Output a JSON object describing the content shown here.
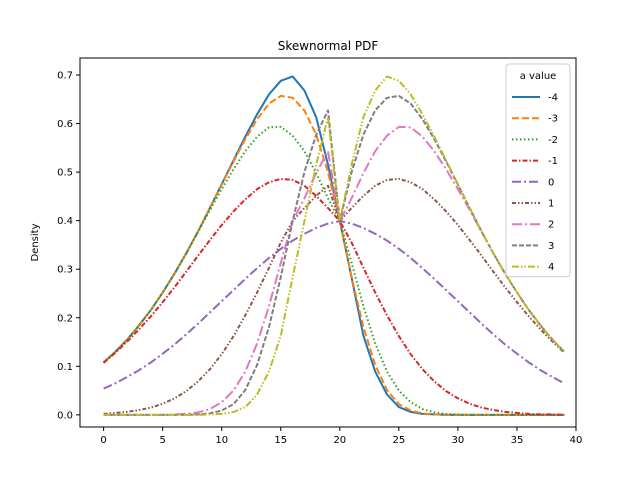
{
  "chart_data": {
    "type": "line",
    "title": "Skewnormal PDF",
    "xlabel": "",
    "ylabel": "Density",
    "xlim": [
      -2,
      40
    ],
    "ylim": [
      -0.025,
      0.735
    ],
    "xticks": [
      0,
      5,
      10,
      15,
      20,
      25,
      30,
      35,
      40
    ],
    "yticks": [
      0.0,
      0.1,
      0.2,
      0.3,
      0.4,
      0.5,
      0.6,
      0.7
    ],
    "grid": false,
    "legend": {
      "title": "a value",
      "placement": "top-right"
    },
    "x": [
      0,
      1,
      2,
      3,
      4,
      5,
      6,
      7,
      8,
      9,
      10,
      11,
      12,
      13,
      14,
      15,
      16,
      17,
      18,
      19,
      20,
      21,
      22,
      23,
      24,
      25,
      26,
      27,
      28,
      29,
      30,
      31,
      32,
      33,
      34,
      35,
      36,
      37,
      38,
      39
    ],
    "series": [
      {
        "name": "-4",
        "color": "#1f77b4",
        "dash": "solid",
        "values": [
          0.108,
          0.13,
          0.155,
          0.184,
          0.216,
          0.252,
          0.291,
          0.333,
          0.378,
          0.426,
          0.475,
          0.524,
          0.573,
          0.619,
          0.66,
          0.688,
          0.697,
          0.668,
          0.613,
          0.515,
          0.399,
          0.283,
          0.163,
          0.089,
          0.042,
          0.016,
          0.006,
          0.002,
          0.001,
          0.0,
          0.0,
          0.0,
          0.0,
          0.0,
          0.0,
          0.0,
          0.0,
          0.0,
          0.0,
          0.0
        ]
      },
      {
        "name": "-3",
        "color": "#ff7f0e",
        "dash": "dashed",
        "values": [
          0.108,
          0.13,
          0.155,
          0.184,
          0.216,
          0.252,
          0.291,
          0.333,
          0.378,
          0.426,
          0.474,
          0.522,
          0.568,
          0.609,
          0.641,
          0.657,
          0.653,
          0.627,
          0.577,
          0.5,
          0.399,
          0.284,
          0.181,
          0.103,
          0.051,
          0.022,
          0.009,
          0.003,
          0.001,
          0.0,
          0.0,
          0.0,
          0.0,
          0.0,
          0.0,
          0.0,
          0.0,
          0.0,
          0.0,
          0.0
        ]
      },
      {
        "name": "-2",
        "color": "#2ca02c",
        "dash": "dotted",
        "values": [
          0.108,
          0.13,
          0.155,
          0.184,
          0.216,
          0.252,
          0.291,
          0.333,
          0.377,
          0.422,
          0.465,
          0.506,
          0.543,
          0.573,
          0.592,
          0.593,
          0.575,
          0.543,
          0.498,
          0.446,
          0.399,
          0.313,
          0.224,
          0.147,
          0.089,
          0.05,
          0.026,
          0.012,
          0.005,
          0.002,
          0.001,
          0.0,
          0.0,
          0.0,
          0.0,
          0.0,
          0.0,
          0.0,
          0.0,
          0.0
        ]
      },
      {
        "name": "-1",
        "color": "#d62728",
        "dash": "dashdot-dense",
        "values": [
          0.107,
          0.128,
          0.151,
          0.176,
          0.203,
          0.232,
          0.263,
          0.295,
          0.328,
          0.36,
          0.391,
          0.419,
          0.444,
          0.465,
          0.479,
          0.486,
          0.484,
          0.472,
          0.451,
          0.426,
          0.399,
          0.355,
          0.303,
          0.252,
          0.205,
          0.162,
          0.125,
          0.094,
          0.069,
          0.049,
          0.034,
          0.023,
          0.015,
          0.01,
          0.006,
          0.004,
          0.002,
          0.001,
          0.001,
          0.0
        ]
      },
      {
        "name": "0",
        "color": "#9467bd",
        "dash": "dashdot",
        "values": [
          0.054,
          0.065,
          0.078,
          0.092,
          0.108,
          0.126,
          0.145,
          0.166,
          0.188,
          0.211,
          0.234,
          0.257,
          0.28,
          0.302,
          0.323,
          0.342,
          0.359,
          0.373,
          0.385,
          0.394,
          0.399,
          0.394,
          0.385,
          0.373,
          0.359,
          0.342,
          0.323,
          0.302,
          0.28,
          0.257,
          0.234,
          0.211,
          0.188,
          0.166,
          0.145,
          0.126,
          0.108,
          0.092,
          0.078,
          0.065
        ]
      },
      {
        "name": "1",
        "color": "#8c564b",
        "dash": "dashdotdot",
        "values": [
          0.002,
          0.004,
          0.006,
          0.01,
          0.015,
          0.023,
          0.034,
          0.049,
          0.069,
          0.094,
          0.125,
          0.162,
          0.205,
          0.252,
          0.303,
          0.355,
          0.399,
          0.426,
          0.451,
          0.472,
          0.399,
          0.426,
          0.451,
          0.472,
          0.484,
          0.486,
          0.479,
          0.465,
          0.444,
          0.419,
          0.391,
          0.36,
          0.328,
          0.295,
          0.263,
          0.232,
          0.203,
          0.176,
          0.151,
          0.128
        ]
      },
      {
        "name": "2",
        "color": "#e377c2",
        "dash": "dashdot-long",
        "values": [
          0.0,
          0.0,
          0.0,
          0.0,
          0.0,
          0.0,
          0.001,
          0.002,
          0.005,
          0.012,
          0.026,
          0.05,
          0.089,
          0.147,
          0.224,
          0.313,
          0.399,
          0.446,
          0.498,
          0.543,
          0.399,
          0.446,
          0.498,
          0.543,
          0.575,
          0.593,
          0.592,
          0.573,
          0.543,
          0.506,
          0.465,
          0.422,
          0.377,
          0.333,
          0.291,
          0.252,
          0.216,
          0.184,
          0.155,
          0.13
        ]
      },
      {
        "name": "3",
        "color": "#7f7f7f",
        "dash": "dashed-long",
        "values": [
          0.0,
          0.0,
          0.0,
          0.0,
          0.0,
          0.0,
          0.0,
          0.0,
          0.001,
          0.003,
          0.009,
          0.022,
          0.051,
          0.103,
          0.181,
          0.284,
          0.399,
          0.5,
          0.577,
          0.627,
          0.399,
          0.5,
          0.577,
          0.627,
          0.653,
          0.657,
          0.641,
          0.609,
          0.568,
          0.522,
          0.474,
          0.426,
          0.378,
          0.333,
          0.291,
          0.252,
          0.216,
          0.184,
          0.155,
          0.13
        ]
      },
      {
        "name": "4",
        "color": "#bcbd22",
        "dash": "dashdotdot-long",
        "values": [
          0.0,
          0.0,
          0.0,
          0.0,
          0.0,
          0.0,
          0.0,
          0.0,
          0.0,
          0.001,
          0.002,
          0.006,
          0.016,
          0.042,
          0.089,
          0.163,
          0.283,
          0.399,
          0.515,
          0.613,
          0.399,
          0.515,
          0.613,
          0.668,
          0.697,
          0.688,
          0.66,
          0.619,
          0.573,
          0.524,
          0.475,
          0.426,
          0.378,
          0.333,
          0.291,
          0.252,
          0.216,
          0.184,
          0.155,
          0.13
        ]
      }
    ]
  }
}
